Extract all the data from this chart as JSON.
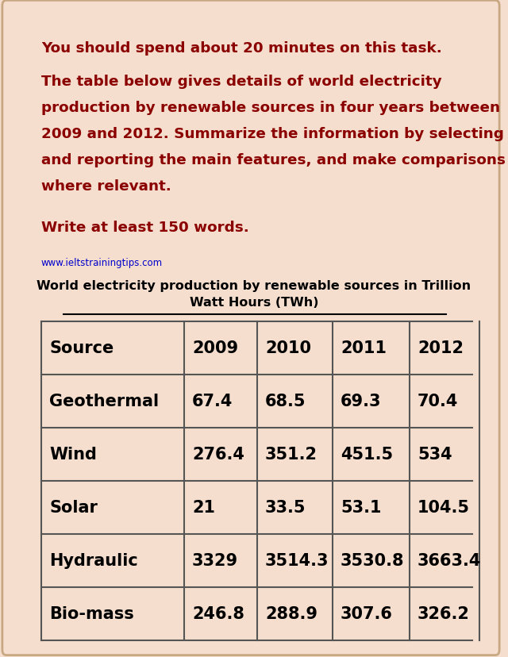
{
  "background_color": "#f5dece",
  "text_color_red": "#8b0000",
  "text_color_black": "#000000",
  "text_color_link": "#0000cc",
  "line1": "You should spend about 20 minutes on this task.",
  "para_lines": [
    "The table below gives details of world electricity",
    "production by renewable sources in four years between",
    "2009 and 2012. Summarize the information by selecting",
    "and reporting the main features, and make comparisons",
    "where relevant."
  ],
  "line7": "Write at least 150 words.",
  "link_text": "www.ieltstrainingtips.com",
  "table_title_line1": "World electricity production by renewable sources in Trillion",
  "table_title_line2": "Watt Hours (TWh)",
  "col_headers": [
    "Source",
    "2009",
    "2010",
    "2011",
    "2012"
  ],
  "rows": [
    [
      "Geothermal",
      "67.4",
      "68.5",
      "69.3",
      "70.4"
    ],
    [
      "Wind",
      "276.4",
      "351.2",
      "451.5",
      "534"
    ],
    [
      "Solar",
      "21",
      "33.5",
      "53.1",
      "104.5"
    ],
    [
      "Hydraulic",
      "3329",
      "3514.3",
      "3530.8",
      "3663.4"
    ],
    [
      "Bio-mass",
      "246.8",
      "288.9",
      "307.6",
      "326.2"
    ]
  ],
  "outer_border_color": "#c8a882",
  "table_border_color": "#555555"
}
